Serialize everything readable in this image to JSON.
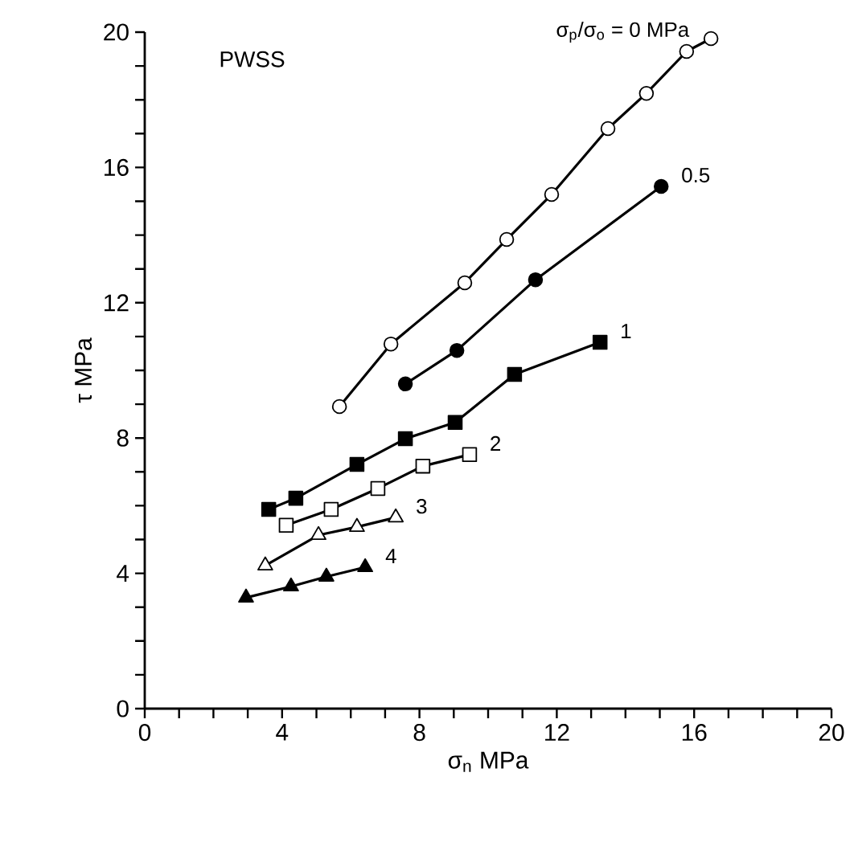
{
  "chart_data": {
    "type": "line",
    "xlabel": "σ$_{n}$ MPa",
    "ylabel": "τ MPa",
    "annotations": [
      "PWSS"
    ],
    "xlim": [
      0,
      20
    ],
    "ylim": [
      0,
      20
    ],
    "xticks": [
      0,
      4,
      8,
      12,
      16,
      20
    ],
    "yticks": [
      0,
      4,
      8,
      12,
      16,
      20
    ],
    "grid": false,
    "legend": false,
    "line_style": "solid",
    "series": [
      {
        "name": "σ$_{p}$/σ$_{o}$ = 0 MPa",
        "color": "#ffffff",
        "marker": "circle",
        "x": [
          5.67,
          7.17,
          9.32,
          10.54,
          11.85,
          13.49,
          14.61,
          15.78,
          16.49
        ],
        "values": [
          8.93,
          10.78,
          12.59,
          13.87,
          15.2,
          17.15,
          18.19,
          19.43,
          19.81
        ]
      },
      {
        "name": "0.5",
        "color": "#000000",
        "marker": "circle",
        "x": [
          7.59,
          9.09,
          11.38,
          15.04
        ],
        "values": [
          9.6,
          10.59,
          12.68,
          15.44
        ]
      },
      {
        "name": "1",
        "color": "#000000",
        "marker": "square",
        "x": [
          3.61,
          4.4,
          6.18,
          7.59,
          9.04,
          10.77,
          13.26
        ],
        "values": [
          5.89,
          6.22,
          7.22,
          7.98,
          8.46,
          9.88,
          10.83
        ]
      },
      {
        "name": "2",
        "color": "#ffffff",
        "marker": "square",
        "x": [
          4.12,
          5.43,
          6.79,
          8.1,
          9.46
        ],
        "values": [
          5.42,
          5.89,
          6.51,
          7.17,
          7.51
        ]
      },
      {
        "name": "3",
        "color": "#ffffff",
        "marker": "triangle",
        "x": [
          3.51,
          5.06,
          6.18,
          7.31
        ],
        "values": [
          4.23,
          5.13,
          5.37,
          5.65
        ]
      },
      {
        "name": "4",
        "color": "#000000",
        "marker": "triangle",
        "x": [
          2.95,
          4.26,
          5.29,
          6.42
        ],
        "values": [
          3.28,
          3.61,
          3.9,
          4.18
        ]
      }
    ]
  }
}
